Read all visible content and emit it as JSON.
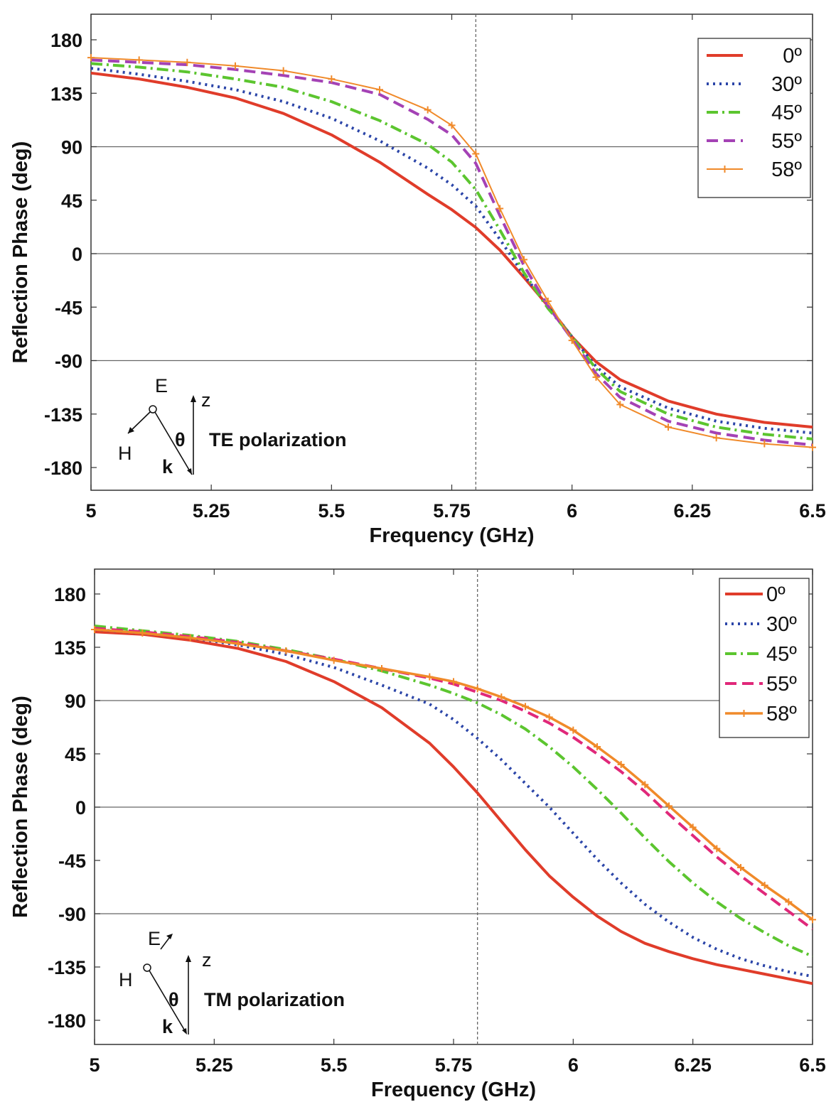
{
  "chart_data": [
    {
      "type": "line",
      "xlabel": "Frequency (GHz)",
      "ylabel": "Reflection Phase (deg)",
      "xlim": [
        5,
        6.5
      ],
      "ylim": [
        -200,
        200
      ],
      "xticks": [
        "5",
        "5.25",
        "5.5",
        "5.75",
        "6",
        "6.25",
        "6.5"
      ],
      "yticks": [
        "180",
        "135",
        "90",
        "45",
        "0",
        "-45",
        "-90",
        "-135",
        "-180"
      ],
      "reference_lines": {
        "horizontal": [
          90,
          0,
          -90
        ],
        "vertical": [
          5.8
        ]
      },
      "legend_position": "top-right",
      "inset": {
        "E": "E",
        "H": "H",
        "k": "k",
        "z": "z",
        "theta": "θ",
        "label": "TE polarization"
      },
      "x": [
        5.0,
        5.1,
        5.2,
        5.3,
        5.4,
        5.5,
        5.6,
        5.7,
        5.75,
        5.8,
        5.85,
        5.9,
        5.95,
        6.0,
        6.05,
        6.1,
        6.2,
        6.3,
        6.4,
        6.5
      ],
      "series": [
        {
          "name": "0º",
          "color": "#e03c2a",
          "dash": "solid",
          "width": 4,
          "values": [
            152,
            147,
            140,
            131,
            118,
            100,
            77,
            50,
            37,
            22,
            3,
            -20,
            -44,
            -70,
            -91,
            -106,
            -124,
            -135,
            -142,
            -146
          ]
        },
        {
          "name": "30º",
          "color": "#2b45a8",
          "dash": "dot",
          "width": 4,
          "values": [
            156,
            151,
            145,
            138,
            128,
            114,
            95,
            72,
            58,
            40,
            12,
            -18,
            -44,
            -70,
            -95,
            -112,
            -130,
            -141,
            -147,
            -151
          ]
        },
        {
          "name": "45º",
          "color": "#5cc52f",
          "dash": "dashdot",
          "width": 4,
          "values": [
            160,
            157,
            153,
            147,
            140,
            128,
            112,
            92,
            77,
            54,
            20,
            -16,
            -46,
            -70,
            -97,
            -116,
            -135,
            -146,
            -152,
            -156
          ]
        },
        {
          "name": "55º",
          "color": "#a442b5",
          "dash": "dash",
          "width": 4,
          "values": [
            163,
            161,
            159,
            155,
            150,
            144,
            134,
            113,
            100,
            76,
            32,
            -10,
            -44,
            -72,
            -101,
            -121,
            -141,
            -151,
            -157,
            -161
          ]
        },
        {
          "name": "58º",
          "color": "#f08a2a",
          "dash": "solid",
          "width": 2,
          "markers": true,
          "values": [
            165,
            163,
            161,
            158,
            154,
            147,
            138,
            121,
            108,
            84,
            38,
            -5,
            -40,
            -73,
            -104,
            -127,
            -146,
            -155,
            -160,
            -163
          ]
        }
      ]
    },
    {
      "type": "line",
      "xlabel": "Frequency (GHz)",
      "ylabel": "Reflection Phase (deg)",
      "xlim": [
        5,
        6.5
      ],
      "ylim": [
        -200,
        200
      ],
      "xticks": [
        "5",
        "5.25",
        "5.5",
        "5.75",
        "6",
        "6.25",
        "6.5"
      ],
      "yticks": [
        "180",
        "135",
        "90",
        "45",
        "0",
        "-45",
        "-90",
        "-135",
        "-180"
      ],
      "reference_lines": {
        "horizontal": [
          90,
          0,
          -90
        ],
        "vertical": [
          5.8
        ]
      },
      "legend_position": "top-right",
      "inset": {
        "E": "E",
        "H": "H",
        "k": "k",
        "z": "z",
        "theta": "θ",
        "label": "TM polarization"
      },
      "x": [
        5.0,
        5.1,
        5.2,
        5.3,
        5.4,
        5.5,
        5.6,
        5.7,
        5.75,
        5.8,
        5.85,
        5.9,
        5.95,
        6.0,
        6.05,
        6.1,
        6.15,
        6.2,
        6.25,
        6.3,
        6.35,
        6.4,
        6.45,
        6.5
      ],
      "series": [
        {
          "name": "0º",
          "color": "#e03c2a",
          "dash": "solid",
          "width": 4,
          "values": [
            148,
            146,
            141,
            134,
            123,
            106,
            84,
            54,
            34,
            12,
            -12,
            -36,
            -58,
            -76,
            -92,
            -105,
            -115,
            -122,
            -128,
            -133,
            -137,
            -141,
            -145,
            -149
          ]
        },
        {
          "name": "30º",
          "color": "#2b45a8",
          "dash": "dot",
          "width": 4,
          "values": [
            150,
            147,
            143,
            137,
            129,
            118,
            103,
            87,
            74,
            58,
            40,
            20,
            0,
            -22,
            -44,
            -64,
            -82,
            -97,
            -110,
            -120,
            -128,
            -134,
            -139,
            -143
          ]
        },
        {
          "name": "45º",
          "color": "#5cc52f",
          "dash": "dashdot",
          "width": 4,
          "values": [
            153,
            149,
            145,
            140,
            133,
            125,
            115,
            103,
            96,
            88,
            78,
            66,
            51,
            34,
            15,
            -5,
            -26,
            -46,
            -64,
            -80,
            -94,
            -106,
            -117,
            -126
          ]
        },
        {
          "name": "55º",
          "color": "#e0287a",
          "dash": "dash",
          "width": 4,
          "values": [
            151,
            148,
            144,
            139,
            132,
            125,
            117,
            109,
            104,
            97,
            90,
            81,
            71,
            59,
            45,
            30,
            13,
            -6,
            -24,
            -42,
            -58,
            -73,
            -88,
            -103
          ]
        },
        {
          "name": "58º",
          "color": "#f08a2a",
          "dash": "solid",
          "width": 3.5,
          "markers": true,
          "values": [
            150,
            147,
            143,
            138,
            132,
            124,
            117,
            110,
            106,
            100,
            93,
            85,
            76,
            65,
            51,
            36,
            19,
            1,
            -17,
            -35,
            -51,
            -66,
            -80,
            -95
          ]
        }
      ]
    }
  ]
}
